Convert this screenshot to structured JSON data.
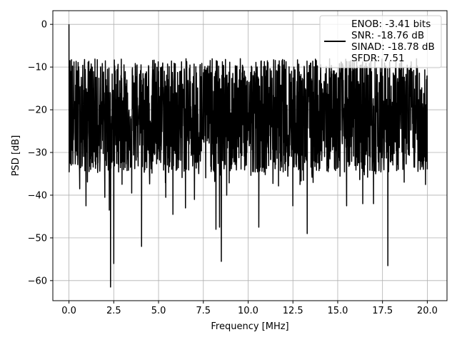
{
  "chart_data": {
    "type": "line",
    "title": "",
    "xlabel": "Frequency [MHz]",
    "ylabel": "PSD [dB]",
    "xlim": [
      -0.9,
      21.1
    ],
    "ylim": [
      -64.7,
      3.2
    ],
    "xticks": [
      0.0,
      2.5,
      5.0,
      7.5,
      10.0,
      12.5,
      15.0,
      17.5,
      20.0
    ],
    "xtick_labels": [
      "0.0",
      "2.5",
      "5.0",
      "7.5",
      "10.0",
      "12.5",
      "15.0",
      "17.5",
      "20.0"
    ],
    "yticks": [
      0,
      -10,
      -20,
      -30,
      -40,
      -50,
      -60
    ],
    "ytick_labels": [
      "0",
      "−10",
      "−20",
      "−30",
      "−40",
      "−50",
      "−60"
    ],
    "grid": true,
    "legend_position": "top-right",
    "legend_entries": [
      "ENOB: -3.41 bits",
      "SNR: -18.76 dB",
      "SINAD: -18.78 dB",
      "SFDR: 7.51"
    ],
    "series": [
      {
        "color": "#000000",
        "description": "noise-like power spectral density from 0 to 20 MHz; median about -22 dB, mostly between -35 and -12 dB",
        "x_range": [
          0.0,
          20.0
        ],
        "num_points": 2000,
        "baseline_db": -22,
        "upper_envelope_db": -11,
        "lower_envelope_db": -38,
        "peaks": [
          [
            0.0,
            0.0
          ],
          [
            0.06,
            -8.5
          ],
          [
            0.1,
            -12.0
          ],
          [
            0.14,
            -8.3
          ],
          [
            1.3,
            -10.0
          ],
          [
            3.8,
            -9.5
          ],
          [
            5.5,
            -9.3
          ],
          [
            12.0,
            -9.5
          ],
          [
            16.5,
            -9.8
          ]
        ],
        "dips": [
          [
            0.6,
            -38.5
          ],
          [
            0.95,
            -42.5
          ],
          [
            2.0,
            -40.5
          ],
          [
            2.25,
            -43.5
          ],
          [
            2.32,
            -61.5
          ],
          [
            2.5,
            -56.0
          ],
          [
            3.5,
            -39.5
          ],
          [
            4.05,
            -52.0
          ],
          [
            5.4,
            -40.5
          ],
          [
            5.8,
            -44.5
          ],
          [
            6.5,
            -43.0
          ],
          [
            7.0,
            -41.0
          ],
          [
            8.2,
            -48.0
          ],
          [
            8.4,
            -47.5
          ],
          [
            8.5,
            -55.5
          ],
          [
            8.8,
            -40.0
          ],
          [
            10.6,
            -47.5
          ],
          [
            12.5,
            -42.5
          ],
          [
            13.3,
            -49.0
          ],
          [
            15.5,
            -42.5
          ],
          [
            16.4,
            -42.0
          ],
          [
            17.0,
            -42.0
          ],
          [
            17.8,
            -56.5
          ],
          [
            19.9,
            -37.5
          ]
        ]
      }
    ]
  }
}
